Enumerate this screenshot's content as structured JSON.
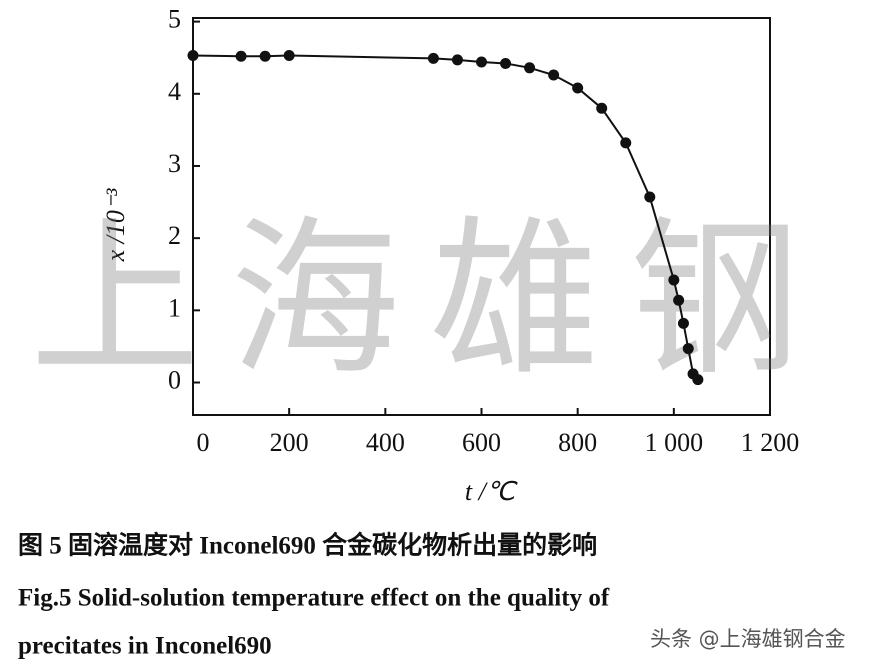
{
  "chart_data": {
    "type": "line",
    "xlabel": "t /℃",
    "ylabel": "x /10⁻³",
    "x": [
      0,
      100,
      150,
      200,
      500,
      550,
      600,
      650,
      700,
      750,
      800,
      850,
      900,
      950,
      1000,
      1010,
      1020,
      1030,
      1040,
      1050
    ],
    "series": [
      {
        "color": "#111111",
        "values": [
          4.53,
          4.52,
          4.52,
          4.53,
          4.49,
          4.47,
          4.44,
          4.42,
          4.36,
          4.26,
          4.08,
          3.8,
          3.32,
          2.57,
          1.42,
          1.14,
          0.82,
          0.47,
          0.12,
          0.04
        ]
      }
    ],
    "xlim": [
      0,
      1200
    ],
    "ylim": [
      -0.45,
      5.05
    ],
    "xticks": [
      0,
      200,
      400,
      600,
      800,
      {
        "value": 1000,
        "label": "1 000"
      },
      {
        "value": 1200,
        "label": "1 200"
      }
    ],
    "yticks": [
      0,
      1,
      2,
      3,
      4,
      5
    ],
    "grid": false,
    "caption": [
      "图 5  固溶温度对 Inconel690 合金碳化物析出量的影响",
      "Fig.5  Solid-solution temperature effect on the quality of",
      "precitates in Inconel690"
    ],
    "watermark": "上海雄钢",
    "credit": "头条 @上海雄钢合金"
  }
}
